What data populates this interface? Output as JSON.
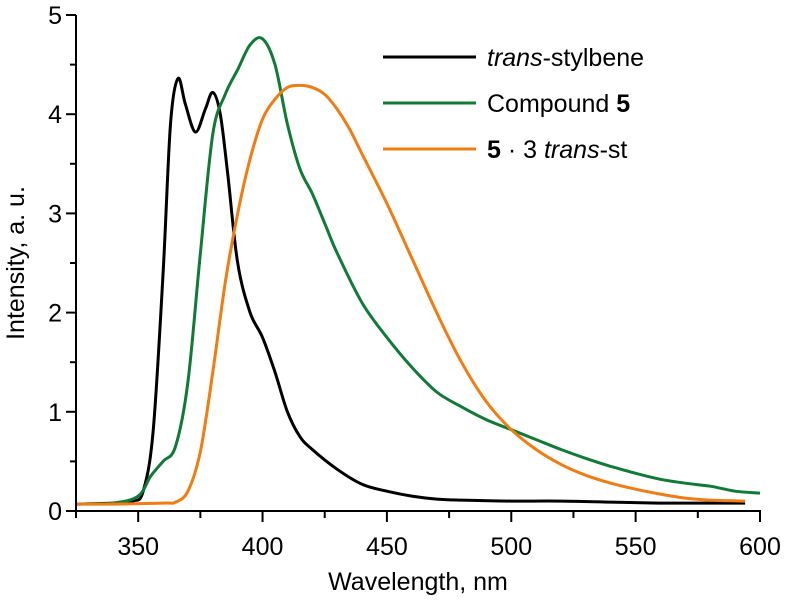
{
  "chart_data": {
    "type": "line",
    "title": "",
    "xlabel": "Wavelength, nm",
    "ylabel": "Intensity, a. u.",
    "xlim": [
      325,
      600
    ],
    "ylim": [
      0,
      5
    ],
    "xticks": [
      350,
      400,
      450,
      500,
      550,
      600
    ],
    "yticks": [
      0,
      1,
      2,
      3,
      4,
      5
    ],
    "grid": false,
    "legend_position": "upper right",
    "series": [
      {
        "name": "trans-stylbene",
        "legend_parts": [
          {
            "text": "trans",
            "style": "italic"
          },
          {
            "text": "-stylbene",
            "style": "normal"
          }
        ],
        "color": "#000000",
        "x": [
          325,
          340,
          348,
          352,
          356,
          360,
          363,
          366,
          369,
          373,
          377,
          380,
          383,
          386,
          390,
          395,
          400,
          405,
          410,
          415,
          420,
          430,
          440,
          450,
          460,
          470,
          480,
          500,
          520,
          540,
          560,
          580,
          594
        ],
        "y": [
          0.07,
          0.08,
          0.1,
          0.2,
          0.8,
          2.4,
          3.9,
          4.36,
          4.1,
          3.82,
          4.05,
          4.22,
          4.0,
          3.4,
          2.5,
          2.0,
          1.75,
          1.4,
          1.0,
          0.75,
          0.62,
          0.42,
          0.27,
          0.2,
          0.15,
          0.12,
          0.11,
          0.1,
          0.1,
          0.09,
          0.08,
          0.08,
          0.08
        ]
      },
      {
        "name": "Compound 5",
        "legend_parts": [
          {
            "text": "Compound ",
            "style": "normal"
          },
          {
            "text": "5",
            "style": "bold"
          }
        ],
        "color": "#107a37",
        "x": [
          325,
          340,
          350,
          355,
          360,
          365,
          370,
          375,
          380,
          385,
          390,
          395,
          400,
          405,
          410,
          415,
          420,
          425,
          430,
          440,
          450,
          460,
          470,
          480,
          490,
          500,
          510,
          520,
          530,
          540,
          550,
          560,
          570,
          580,
          590,
          600
        ],
        "y": [
          0.07,
          0.08,
          0.15,
          0.35,
          0.5,
          0.65,
          1.3,
          2.6,
          3.8,
          4.2,
          4.45,
          4.7,
          4.76,
          4.5,
          3.9,
          3.45,
          3.2,
          2.9,
          2.6,
          2.1,
          1.75,
          1.45,
          1.2,
          1.05,
          0.92,
          0.82,
          0.72,
          0.62,
          0.53,
          0.45,
          0.38,
          0.32,
          0.28,
          0.25,
          0.2,
          0.18
        ]
      },
      {
        "name": "5 · 3 trans-st",
        "legend_parts": [
          {
            "text": "5",
            "style": "bold"
          },
          {
            "text": " · 3 ",
            "style": "normal"
          },
          {
            "text": "trans",
            "style": "italic"
          },
          {
            "text": "-st",
            "style": "normal"
          }
        ],
        "color": "#f07c12",
        "x": [
          325,
          340,
          360,
          365,
          370,
          375,
          380,
          385,
          390,
          395,
          400,
          405,
          410,
          415,
          420,
          425,
          430,
          435,
          440,
          450,
          460,
          470,
          480,
          490,
          500,
          510,
          520,
          530,
          540,
          550,
          560,
          570,
          580,
          594
        ],
        "y": [
          0.07,
          0.07,
          0.08,
          0.09,
          0.2,
          0.6,
          1.4,
          2.3,
          3.0,
          3.55,
          3.95,
          4.15,
          4.27,
          4.29,
          4.27,
          4.2,
          4.05,
          3.85,
          3.6,
          3.1,
          2.55,
          2.0,
          1.5,
          1.1,
          0.82,
          0.62,
          0.47,
          0.36,
          0.28,
          0.22,
          0.17,
          0.13,
          0.11,
          0.1
        ]
      }
    ]
  }
}
